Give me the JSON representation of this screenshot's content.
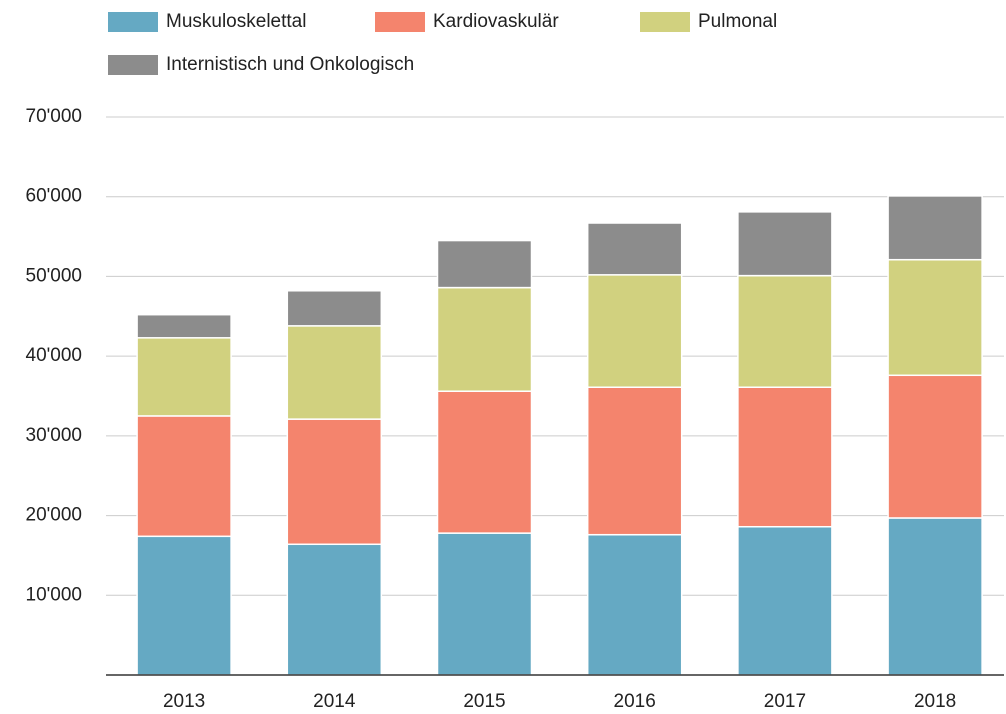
{
  "chart_data": {
    "type": "stacked_bar",
    "categories": [
      "2013",
      "2014",
      "2015",
      "2016",
      "2017",
      "2018"
    ],
    "series": [
      {
        "name": "Muskuloskelettal",
        "color": "#65a9c3",
        "values": [
          17400,
          16400,
          17800,
          17600,
          18600,
          19700
        ]
      },
      {
        "name": "Kardiovaskulär",
        "color": "#f4846d",
        "values": [
          15100,
          15700,
          17800,
          18500,
          17500,
          17900
        ]
      },
      {
        "name": "Pulmonal",
        "color": "#d1d17f",
        "values": [
          9800,
          11700,
          13000,
          14100,
          14000,
          14500
        ]
      },
      {
        "name": "Internistisch und Onkologisch",
        "color": "#8c8c8c",
        "values": [
          2900,
          4400,
          5900,
          6500,
          8000,
          8000
        ]
      }
    ],
    "ylim": [
      0,
      70000
    ],
    "yticks": [
      {
        "value": 10000,
        "label": "10'000"
      },
      {
        "value": 20000,
        "label": "20'000"
      },
      {
        "value": 30000,
        "label": "30'000"
      },
      {
        "value": 40000,
        "label": "40'000"
      },
      {
        "value": 50000,
        "label": "50'000"
      },
      {
        "value": 60000,
        "label": "60'000"
      },
      {
        "value": 70000,
        "label": "70'000"
      }
    ],
    "grid": true
  }
}
